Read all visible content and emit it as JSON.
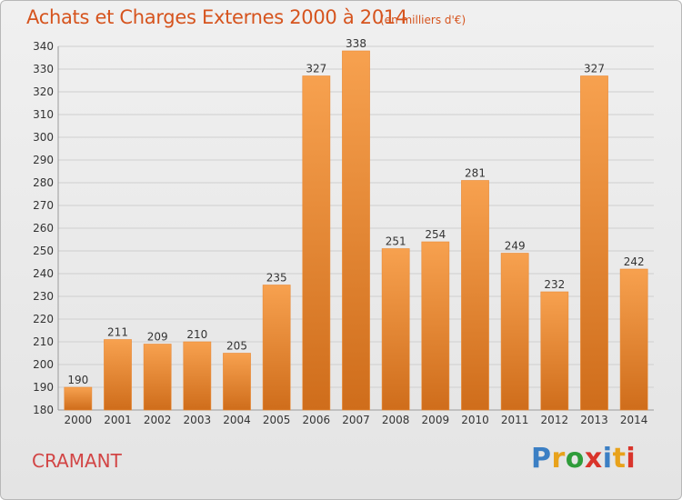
{
  "header": {
    "title": "Achats et Charges Externes 2000 à 2014",
    "subtitle": "(en milliers d'€)"
  },
  "footer": {
    "city": "CRAMANT",
    "logo_text": "Proxiti",
    "logo_colors": [
      "#3b7fc4",
      "#e8a21b",
      "#2f9c3a",
      "#d9342b",
      "#3b7fc4",
      "#e8a21b",
      "#d9342b"
    ]
  },
  "colors": {
    "bar_light": "#f7a14f",
    "bar_dark": "#cf6d1b",
    "title": "#d6541e",
    "grid": "#cfcfcf",
    "text": "#333333"
  },
  "chart_data": {
    "type": "bar",
    "categories": [
      "2000",
      "2001",
      "2002",
      "2003",
      "2004",
      "2005",
      "2006",
      "2007",
      "2008",
      "2009",
      "2010",
      "2011",
      "2012",
      "2013",
      "2014"
    ],
    "values": [
      190,
      211,
      209,
      210,
      205,
      235,
      327,
      338,
      251,
      254,
      281,
      249,
      232,
      327,
      242
    ],
    "title": "Achats et Charges Externes 2000 à 2014",
    "subtitle": "(en milliers d'€)",
    "xlabel": "",
    "ylabel": "",
    "ylim": [
      180,
      340
    ],
    "yticks": [
      180,
      190,
      200,
      210,
      220,
      230,
      240,
      250,
      260,
      270,
      280,
      290,
      300,
      310,
      320,
      330,
      340
    ],
    "grid": true,
    "legend": "none"
  }
}
